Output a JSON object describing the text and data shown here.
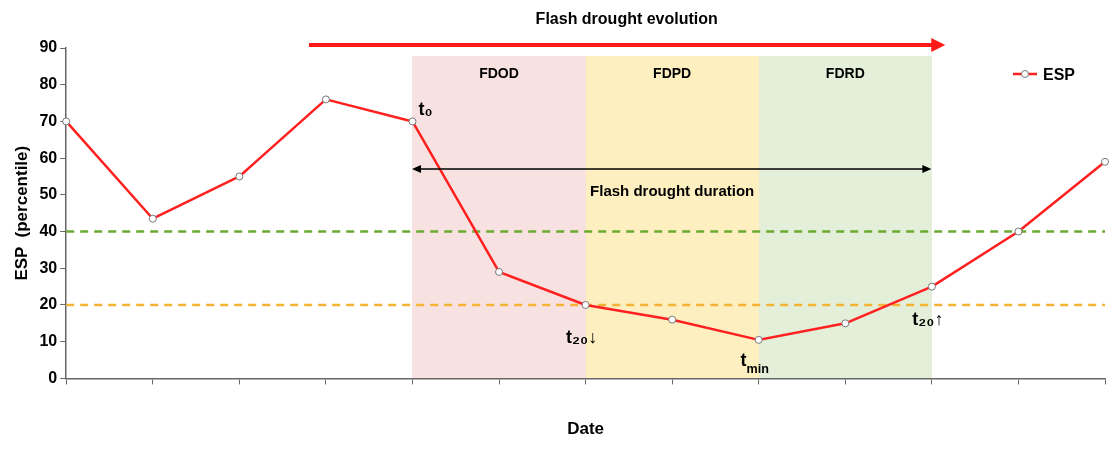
{
  "chart_data": {
    "type": "line",
    "xlabel": "Date",
    "ylabel": "ESP  (percentile)",
    "categories": [
      null,
      null,
      null,
      null,
      null,
      null,
      null,
      null,
      null,
      null,
      null,
      null,
      null
    ],
    "series": [
      {
        "name": "ESP",
        "color": "#ff2020",
        "values": [
          70,
          43.5,
          55,
          76,
          70,
          29,
          20,
          16,
          10.5,
          15,
          25,
          40,
          59
        ]
      }
    ],
    "ylim": [
      0,
      90
    ],
    "yticks": [
      0,
      10,
      20,
      30,
      40,
      50,
      60,
      70,
      80,
      90
    ],
    "grid": false,
    "legend": "top right",
    "marker": "circle",
    "line_style": "solid",
    "ref_lines": [
      {
        "axis": "y",
        "value": 40,
        "label": null,
        "color": "#6aaa2f",
        "line_style": "dashed"
      },
      {
        "axis": "y",
        "value": 20,
        "label": null,
        "color": "#f5b335",
        "line_style": "dashed"
      }
    ],
    "annotations": [
      "Flash drought evolution",
      "Flash drought duration",
      "FDOD",
      "FDPD",
      "FDRD",
      "t₀",
      "t₂₀↓",
      "t$_{min}$",
      "t₂₀↑"
    ]
  }
}
